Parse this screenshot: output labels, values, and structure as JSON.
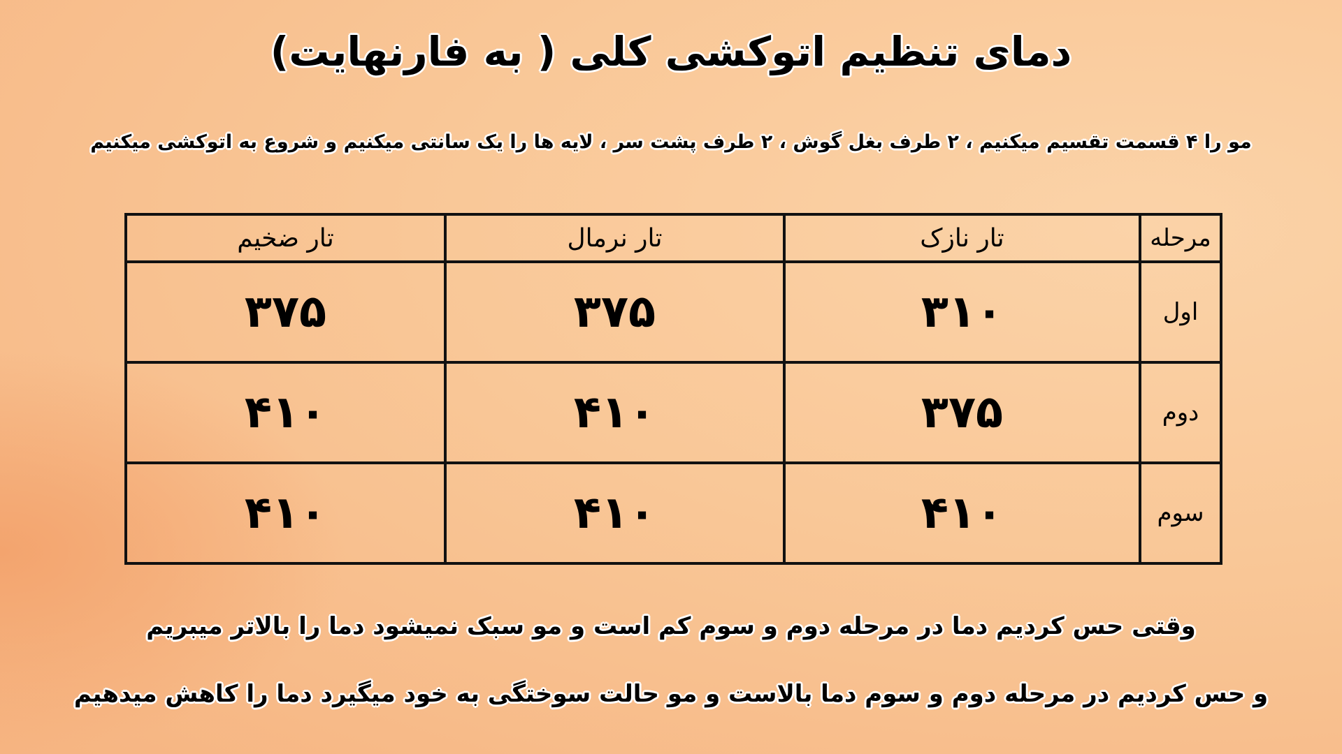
{
  "title": "دمای تنظیم اتوکشی کلی ( به فارنهایت)",
  "subtitle": "مو را ۴ قسمت تقسیم میکنیم ، ۲ طرف بغل گوش ، ۲ طرف پشت سر ، لایه ها را یک سانتی میکنیم و شروع به اتوکشی میکنیم",
  "table": {
    "headers": [
      "مرحله",
      "تار نازک",
      "تار نرمال",
      "تار ضخیم"
    ],
    "rows": [
      {
        "stage": "اول",
        "values": [
          "۳۱۰",
          "۳۷۵",
          "۳۷۵"
        ]
      },
      {
        "stage": "دوم",
        "values": [
          "۳۷۵",
          "۴۱۰",
          "۴۱۰"
        ]
      },
      {
        "stage": "سوم",
        "values": [
          "۴۱۰",
          "۴۱۰",
          "۴۱۰"
        ]
      }
    ]
  },
  "notes": [
    "وقتی حس کردیم دما در مرحله دوم و سوم کم است و مو سبک نمیشود دما را بالاتر میبریم",
    "و حس کردیم در مرحله دوم و سوم دما بالاست و مو حالت سوختگی به خود میگیرد دما را کاهش میدهیم"
  ]
}
